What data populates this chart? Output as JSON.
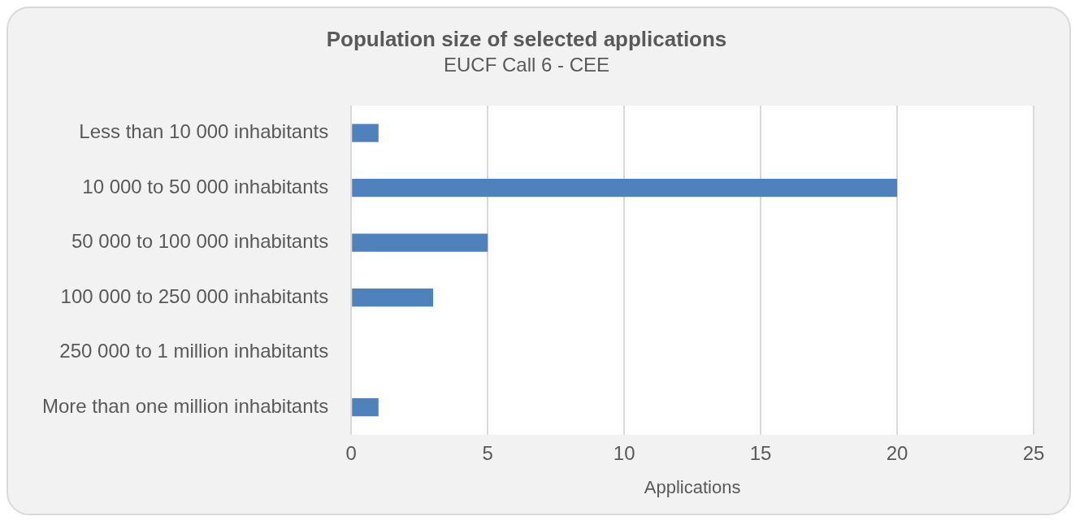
{
  "chart_data": {
    "type": "bar",
    "orientation": "horizontal",
    "title": "Population size of selected applications",
    "subtitle": "EUCF Call 6 - CEE",
    "xlabel": "Applications",
    "categories": [
      "Less than 10 000 inhabitants",
      "10 000 to 50 000 inhabitants",
      "50 000 to 100 000 inhabitants",
      "100 000 to 250 000 inhabitants",
      "250 000 to 1 million inhabitants",
      "More than one million inhabitants"
    ],
    "values": [
      1,
      20,
      5,
      3,
      0,
      1
    ],
    "color": "#4f81bd",
    "xlim": [
      0,
      25
    ],
    "xticks": [
      0,
      5,
      10,
      15,
      20,
      25
    ],
    "grid": "x",
    "legend": false
  }
}
